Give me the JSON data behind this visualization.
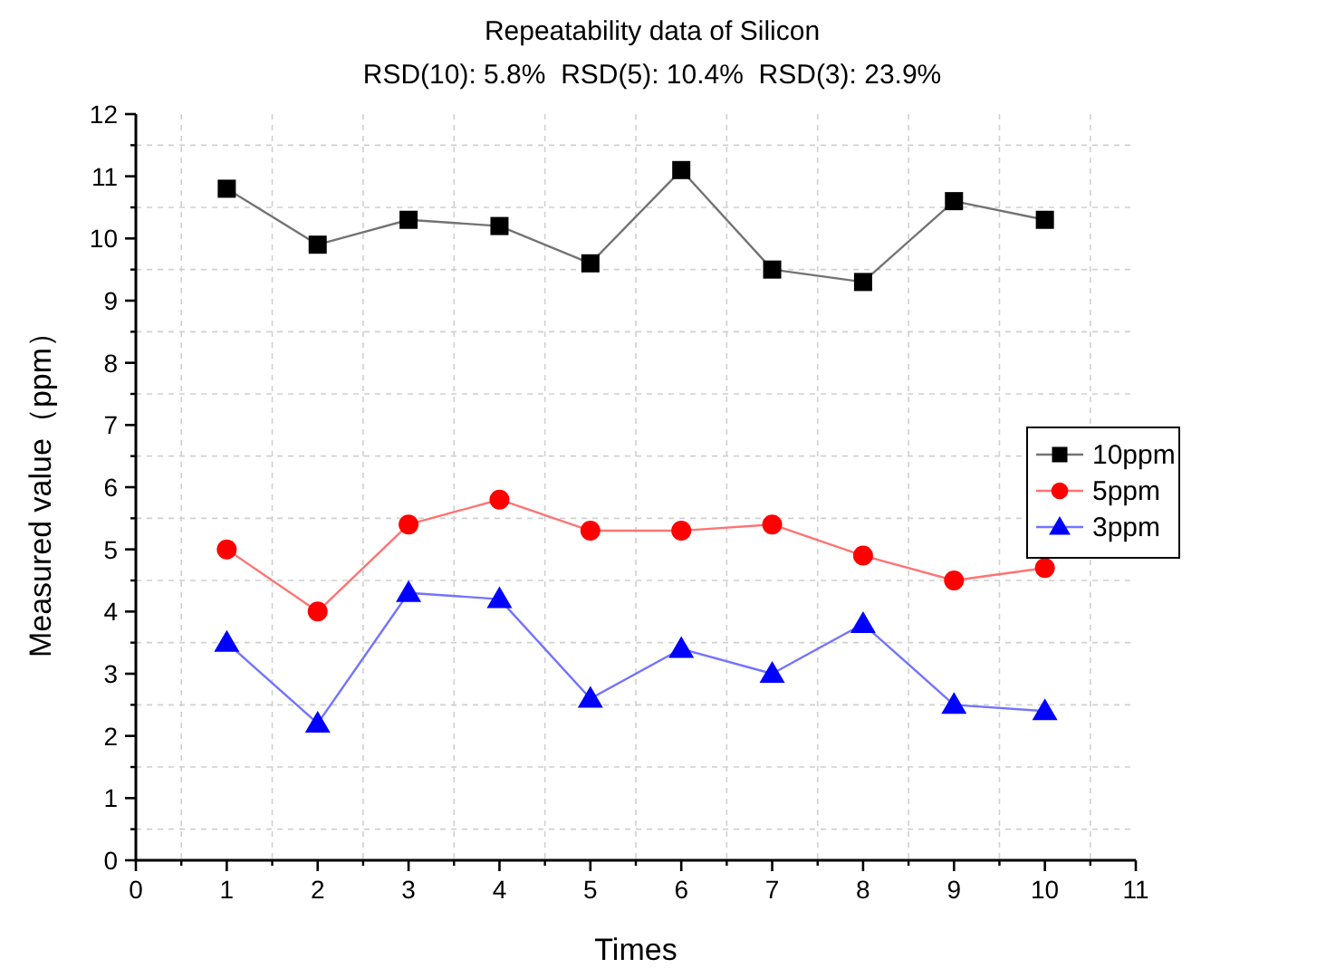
{
  "chart_data": {
    "type": "line",
    "title": "Repeatability data of Silicon",
    "subtitle": "RSD(10): 5.8%  RSD(5): 10.4%  RSD(3): 23.9%",
    "xlabel": "Times",
    "ylabel": "Measured value（ppm）",
    "x": [
      1,
      2,
      3,
      4,
      5,
      6,
      7,
      8,
      9,
      10
    ],
    "series": [
      {
        "name": "10ppm",
        "color": "#000000",
        "marker": "square",
        "values": [
          10.8,
          9.9,
          10.3,
          10.2,
          9.6,
          11.1,
          9.5,
          9.3,
          10.6,
          10.3
        ]
      },
      {
        "name": "5ppm",
        "color": "#ff0000",
        "marker": "circle",
        "values": [
          5.0,
          4.0,
          5.4,
          5.8,
          5.3,
          5.3,
          5.4,
          4.9,
          4.5,
          4.7
        ]
      },
      {
        "name": "3ppm",
        "color": "#0000ff",
        "marker": "triangle",
        "values": [
          3.5,
          2.2,
          4.3,
          4.2,
          2.6,
          3.4,
          3.0,
          3.8,
          2.5,
          2.4
        ]
      }
    ],
    "xlim": [
      0,
      11
    ],
    "xticks": [
      0,
      1,
      2,
      3,
      4,
      5,
      6,
      7,
      8,
      9,
      10,
      11
    ],
    "ylim": [
      0,
      12
    ],
    "yticks": [
      0,
      1,
      2,
      3,
      4,
      5,
      6,
      7,
      8,
      9,
      10,
      11,
      12
    ],
    "grid": true,
    "legend": "right"
  }
}
